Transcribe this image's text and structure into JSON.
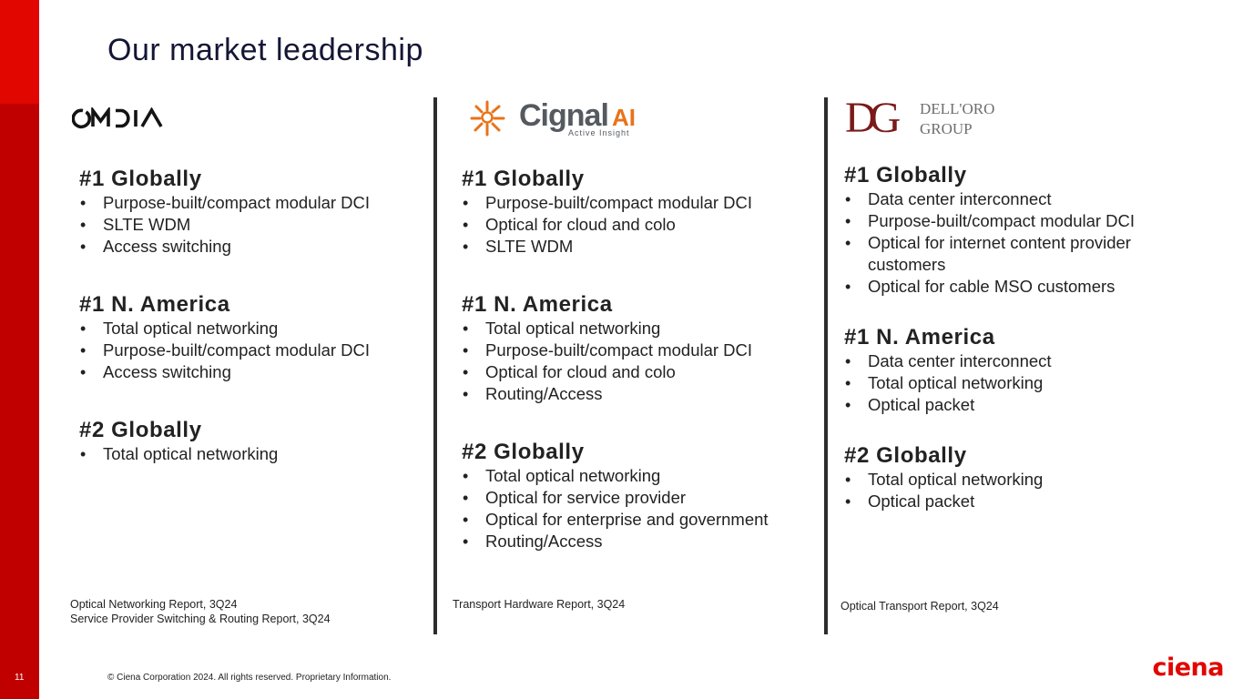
{
  "page": {
    "number": "11",
    "title": "Our market leadership",
    "copyright": "© Ciena Corporation 2024. All rights reserved. Proprietary Information."
  },
  "brand": {
    "ciena_logo_text": "ciena",
    "accent": "#e10600",
    "dark_red": "#c00000",
    "title_color": "#141635"
  },
  "columns": [
    {
      "logo": {
        "text": "OMDIA",
        "icon": "omdia-logo"
      },
      "sections": [
        {
          "heading": "#1 Globally",
          "items": [
            "Purpose-built/compact modular DCI",
            "SLTE WDM",
            "Access switching"
          ]
        },
        {
          "heading": "#1 N. America",
          "items": [
            "Total optical networking",
            "Purpose-built/compact modular DCI",
            "Access switching"
          ]
        },
        {
          "heading": "#2 Globally",
          "items": [
            "Total optical networking"
          ]
        }
      ],
      "source": [
        "Optical Networking Report, 3Q24",
        "Service Provider Switching & Routing Report, 3Q24"
      ]
    },
    {
      "logo": {
        "text": "Cignal",
        "accent_text": "AI",
        "tagline": "Active Insight",
        "icon": "cignal-ai-logo"
      },
      "sections": [
        {
          "heading": "#1 Globally",
          "items": [
            "Purpose-built/compact modular DCI",
            "Optical for cloud and colo",
            "SLTE WDM"
          ]
        },
        {
          "heading": "#1 N. America",
          "items": [
            "Total optical networking",
            "Purpose-built/compact modular DCI",
            "Optical for cloud and colo",
            "Routing/Access"
          ]
        },
        {
          "heading": "#2 Globally",
          "items": [
            "Total optical networking",
            "Optical for service provider",
            "Optical for enterprise and government",
            "Routing/Access"
          ]
        }
      ],
      "source": [
        "Transport Hardware Report, 3Q24"
      ]
    },
    {
      "logo": {
        "monogram": "DG",
        "line1": "DELL'ORO",
        "line2": "GROUP",
        "icon": "delloro-group-logo"
      },
      "sections": [
        {
          "heading": "#1 Globally",
          "items": [
            "Data center interconnect",
            "Purpose-built/compact modular DCI",
            "Optical for internet content provider customers",
            "Optical for cable MSO customers"
          ]
        },
        {
          "heading": "#1 N. America",
          "items": [
            "Data center interconnect",
            "Total optical networking",
            "Optical packet"
          ]
        },
        {
          "heading": "#2 Globally",
          "items": [
            "Total optical networking",
            "Optical packet"
          ]
        }
      ],
      "source": [
        "Optical Transport Report, 3Q24"
      ]
    }
  ]
}
